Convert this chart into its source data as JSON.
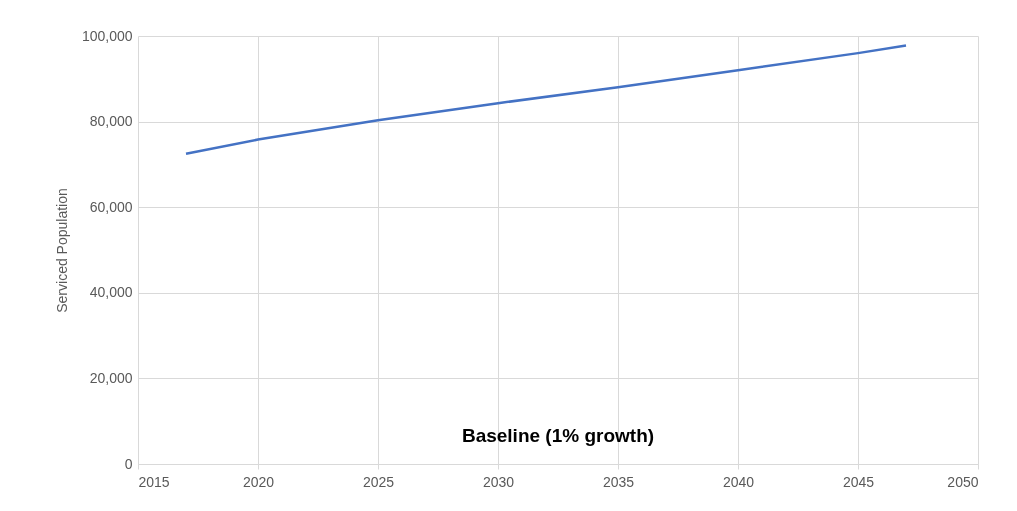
{
  "chart_data": {
    "type": "line",
    "title": "Baseline (1% growth)",
    "ylabel": "Serviced Population",
    "x": [
      2017,
      2020,
      2025,
      2030,
      2035,
      2040,
      2045,
      2047
    ],
    "series": [
      {
        "color": "#4472c4",
        "values": [
          72500,
          75800,
          80300,
          84300,
          88000,
          92000,
          96000,
          97800
        ]
      }
    ],
    "xlim": [
      2015,
      2050
    ],
    "xticks": [
      2015,
      2020,
      2025,
      2030,
      2035,
      2040,
      2045,
      2050
    ],
    "ylim": [
      0,
      100000
    ],
    "yticks": [
      0,
      {
        "value": 20000,
        "label": "20,000"
      },
      {
        "value": 40000,
        "label": "40,000"
      },
      {
        "value": 60000,
        "label": "60,000"
      },
      {
        "value": 80000,
        "label": "80,000"
      },
      {
        "value": 100000,
        "label": "100,000"
      }
    ],
    "grid": true,
    "marker": "none",
    "line_style": "solid"
  }
}
